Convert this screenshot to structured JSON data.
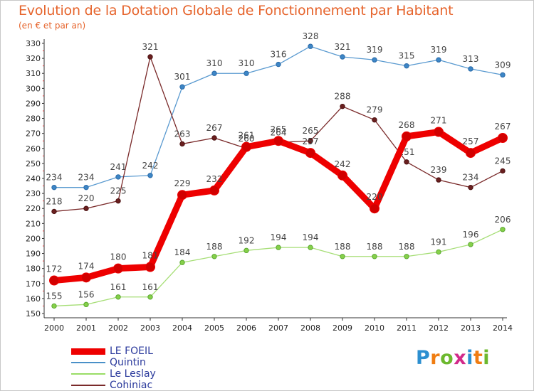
{
  "chart_data": {
    "type": "line",
    "title": "Evolution de la Dotation Globale de Fonctionnement par Habitant",
    "subtitle": "(en € et par an)",
    "xlabel": "",
    "ylabel": "",
    "categories": [
      "2000",
      "2001",
      "2002",
      "2003",
      "2004",
      "2005",
      "2006",
      "2007",
      "2008",
      "2009",
      "2010",
      "2011",
      "2012",
      "2013",
      "2014"
    ],
    "ylim": [
      150,
      330
    ],
    "yticks": [
      150,
      160,
      170,
      180,
      190,
      200,
      210,
      220,
      230,
      240,
      250,
      260,
      270,
      280,
      290,
      300,
      310,
      320,
      330
    ],
    "grid": false,
    "legend_position": "bottom-left",
    "series": [
      {
        "name": "LE FOEIL",
        "color": "#ee0000",
        "values": [
          172,
          174,
          180,
          181,
          229,
          232,
          261,
          265,
          257,
          242,
          220,
          268,
          271,
          257,
          267
        ]
      },
      {
        "name": "Quintin",
        "color": "#4a90c8",
        "values": [
          234,
          234,
          241,
          242,
          301,
          310,
          310,
          316,
          328,
          321,
          319,
          315,
          319,
          313,
          309
        ]
      },
      {
        "name": "Le Leslay",
        "color": "#99dd66",
        "values": [
          155,
          156,
          161,
          161,
          184,
          188,
          192,
          194,
          194,
          188,
          188,
          188,
          191,
          196,
          206
        ]
      },
      {
        "name": "Cohiniac",
        "color": "#7a2a2a",
        "values": [
          218,
          220,
          225,
          321,
          263,
          267,
          260,
          264,
          265,
          288,
          279,
          251,
          239,
          234,
          245
        ]
      }
    ]
  },
  "logo": {
    "text": "Proxiti",
    "letters": [
      "P",
      "r",
      "o",
      "x",
      "i",
      "t",
      "i"
    ],
    "colors": [
      "#2c8fd0",
      "#f07d12",
      "#6cb82e",
      "#d22a8a",
      "#2c8fd0",
      "#f07d12",
      "#6cb82e"
    ]
  }
}
